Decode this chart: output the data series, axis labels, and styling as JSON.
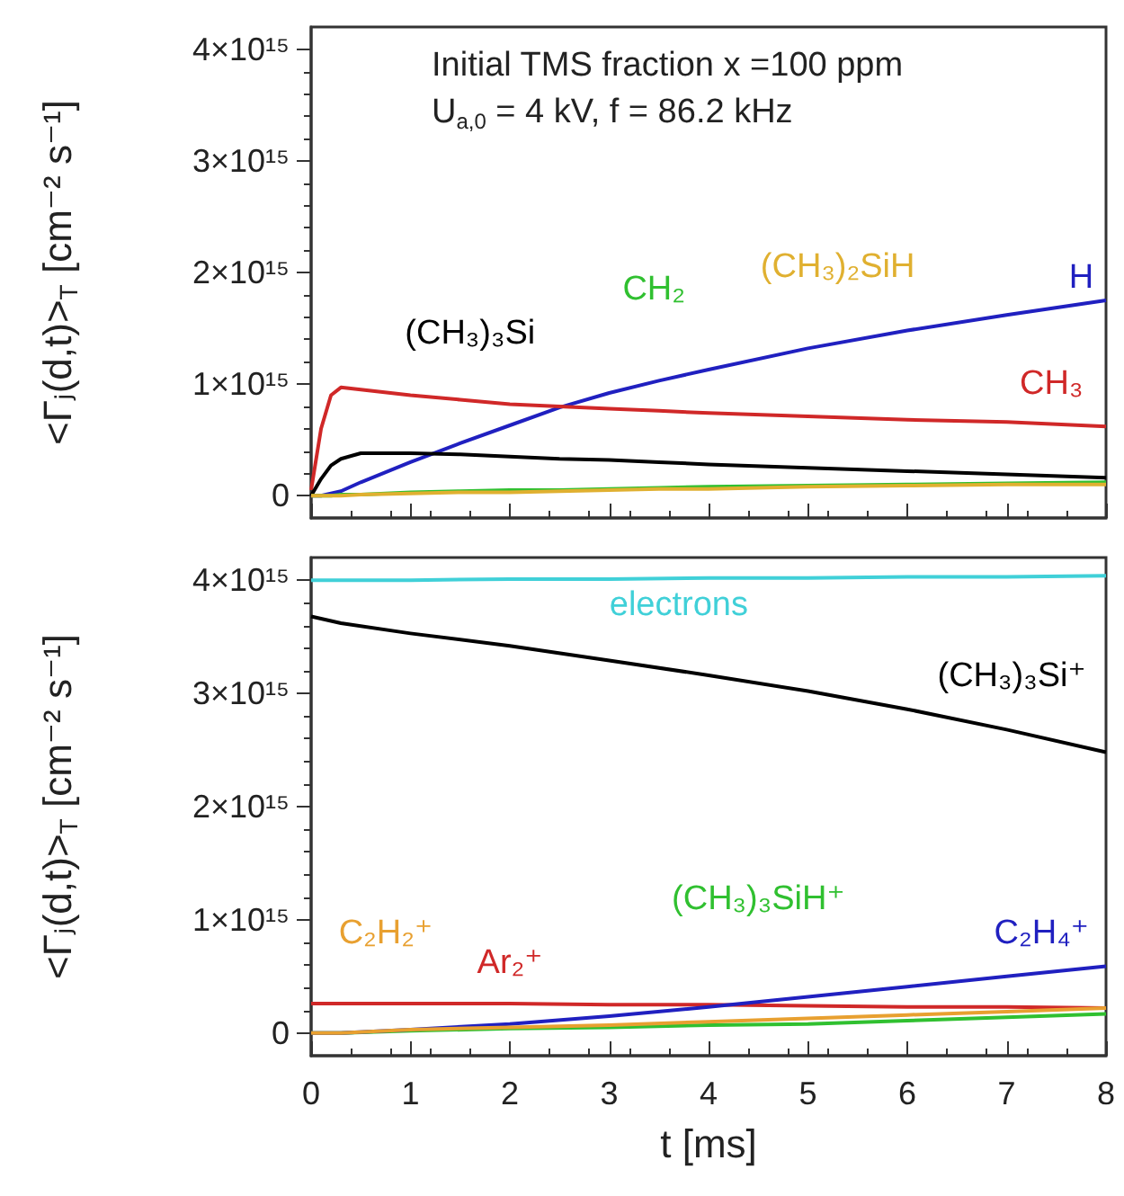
{
  "chart_data": [
    {
      "type": "line",
      "ylabel": "<Γⱼ(d,t)>$_{T}$ [cm⁻² s⁻¹]",
      "annotations": [
        "Initial TMS fraction x =100 ppm",
        "U$_{a,0}$ = 4 kV, f = 86.2 kHz"
      ],
      "x": [
        0,
        0.1,
        0.2,
        0.3,
        0.5,
        1,
        1.5,
        2,
        2.5,
        3,
        3.5,
        4,
        5,
        6,
        7,
        8
      ],
      "xlim": [
        0,
        8
      ],
      "xticks": [
        0,
        1,
        2,
        3,
        4,
        5,
        6,
        7,
        8
      ],
      "ylim": [
        -200000000000000.0,
        4200000000000000.0
      ],
      "yticks": [
        0,
        {
          "value": 1000000000000000.0,
          "label": "1×10¹⁵"
        },
        {
          "value": 2000000000000000.0,
          "label": "2×10¹⁵"
        },
        {
          "value": 3000000000000000.0,
          "label": "3×10¹⁵"
        },
        {
          "value": 4000000000000000.0,
          "label": "4×10¹⁵"
        }
      ],
      "tick_labels": "y",
      "legend": false,
      "grid": false,
      "series": [
        {
          "name": "H",
          "color": "#2020c0",
          "values": [
            0,
            0,
            20000000000000.0,
            40000000000000.0,
            120000000000000.0,
            300000000000000.0,
            470000000000000.0,
            630000000000000.0,
            790000000000000.0,
            920000000000000.0,
            1030000000000000.0,
            1130000000000000.0,
            1320000000000000.0,
            1480000000000000.0,
            1620000000000000.0,
            1750000000000000.0
          ]
        },
        {
          "name": "CH₃",
          "color": "#d02828",
          "values": [
            50000000000000.0,
            600000000000000.0,
            900000000000000.0,
            970000000000000.0,
            950000000000000.0,
            900000000000000.0,
            860000000000000.0,
            820000000000000.0,
            800000000000000.0,
            780000000000000.0,
            760000000000000.0,
            740000000000000.0,
            710000000000000.0,
            680000000000000.0,
            660000000000000.0,
            620000000000000.0
          ]
        },
        {
          "name": "(CH₃)₃Si",
          "color": "#000000",
          "values": [
            0,
            150000000000000.0,
            270000000000000.0,
            330000000000000.0,
            380000000000000.0,
            380000000000000.0,
            370000000000000.0,
            350000000000000.0,
            330000000000000.0,
            320000000000000.0,
            300000000000000.0,
            280000000000000.0,
            250000000000000.0,
            220000000000000.0,
            190000000000000.0,
            160000000000000.0
          ]
        },
        {
          "name": "CH₂",
          "color": "#30c030",
          "values": [
            0,
            0,
            0,
            10000000000000.0,
            10000000000000.0,
            30000000000000.0,
            40000000000000.0,
            50000000000000.0,
            50000000000000.0,
            60000000000000.0,
            70000000000000.0,
            80000000000000.0,
            90000000000000.0,
            100000000000000.0,
            110000000000000.0,
            120000000000000.0
          ]
        },
        {
          "name": "(CH₃)₂SiH",
          "color": "#e0b030",
          "values": [
            0,
            0,
            0,
            0,
            10000000000000.0,
            20000000000000.0,
            30000000000000.0,
            30000000000000.0,
            40000000000000.0,
            50000000000000.0,
            60000000000000.0,
            60000000000000.0,
            80000000000000.0,
            90000000000000.0,
            100000000000000.0,
            100000000000000.0
          ]
        }
      ]
    },
    {
      "type": "line",
      "xlabel": "t [ms]",
      "ylabel": "<Γⱼ(d,t)>$_{T}$ [cm⁻² s⁻¹]",
      "x": [
        0,
        0.3,
        1,
        2,
        3,
        4,
        5,
        6,
        7,
        8
      ],
      "xlim": [
        0,
        8
      ],
      "xticks": [
        0,
        1,
        2,
        3,
        4,
        5,
        6,
        7,
        8
      ],
      "ylim": [
        -200000000000000.0,
        4200000000000000.0
      ],
      "yticks": [
        0,
        {
          "value": 1000000000000000.0,
          "label": "1×10¹⁵"
        },
        {
          "value": 2000000000000000.0,
          "label": "2×10¹⁵"
        },
        {
          "value": 3000000000000000.0,
          "label": "3×10¹⁵"
        },
        {
          "value": 4000000000000000.0,
          "label": "4×10¹⁵"
        }
      ],
      "legend": false,
      "grid": false,
      "series": [
        {
          "name": "electrons",
          "color": "#40d0d8",
          "values": [
            4000000000000000.0,
            4000000000000000.0,
            4000000000000000.0,
            4010000000000000.0,
            4010000000000000.0,
            4020000000000000.0,
            4020000000000000.0,
            4030000000000000.0,
            4030000000000000.0,
            4040000000000000.0
          ]
        },
        {
          "name": "(CH₃)₃Si⁺",
          "color": "#000000",
          "values": [
            3680000000000000.0,
            3620000000000000.0,
            3530000000000000.0,
            3420000000000000.0,
            3290000000000000.0,
            3160000000000000.0,
            3020000000000000.0,
            2860000000000000.0,
            2680000000000000.0,
            2480000000000000.0
          ]
        },
        {
          "name": "Ar₂⁺",
          "color": "#d02828",
          "values": [
            260000000000000.0,
            260000000000000.0,
            260000000000000.0,
            260000000000000.0,
            250000000000000.0,
            250000000000000.0,
            240000000000000.0,
            230000000000000.0,
            230000000000000.0,
            220000000000000.0
          ]
        },
        {
          "name": "(CH₃)₃SiH⁺",
          "color": "#30c030",
          "values": [
            0,
            0,
            20000000000000.0,
            40000000000000.0,
            50000000000000.0,
            70000000000000.0,
            80000000000000.0,
            110000000000000.0,
            140000000000000.0,
            170000000000000.0
          ]
        },
        {
          "name": "C₂H₄⁺",
          "color": "#2020c0",
          "values": [
            0,
            0,
            30000000000000.0,
            80000000000000.0,
            150000000000000.0,
            230000000000000.0,
            320000000000000.0,
            410000000000000.0,
            500000000000000.0,
            590000000000000.0
          ]
        },
        {
          "name": "C₂H₂⁺",
          "color": "#e8a030",
          "values": [
            0,
            0,
            30000000000000.0,
            50000000000000.0,
            70000000000000.0,
            100000000000000.0,
            130000000000000.0,
            160000000000000.0,
            190000000000000.0,
            220000000000000.0
          ]
        }
      ]
    }
  ]
}
